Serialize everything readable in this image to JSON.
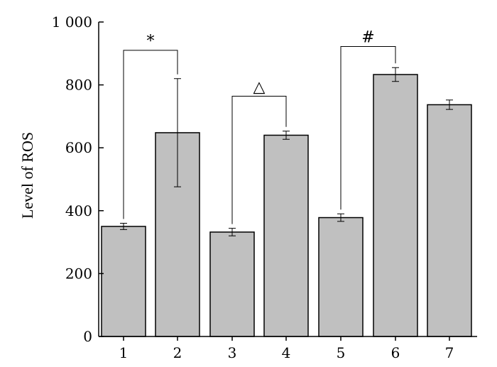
{
  "chart_data": {
    "type": "bar",
    "title": "",
    "xlabel": "",
    "ylabel": "Level of ROS",
    "ylim": [
      0,
      1000
    ],
    "yticks": [
      0,
      200,
      400,
      600,
      800,
      1000
    ],
    "ytick_labels": [
      "0",
      "200",
      "400",
      "600",
      "800",
      "1 000"
    ],
    "categories": [
      "1",
      "2",
      "3",
      "4",
      "5",
      "6",
      "7"
    ],
    "values": [
      350,
      648,
      332,
      640,
      378,
      833,
      737
    ],
    "errors": [
      10,
      172,
      12,
      13,
      12,
      22,
      15
    ],
    "bar_color": "#c0c0c0",
    "grid": false,
    "significance": [
      {
        "from": 0,
        "to": 1,
        "label": "*",
        "level": 910
      },
      {
        "from": 2,
        "to": 3,
        "label": "△",
        "level": 764
      },
      {
        "from": 4,
        "to": 5,
        "label": "#",
        "level": 922
      }
    ]
  }
}
